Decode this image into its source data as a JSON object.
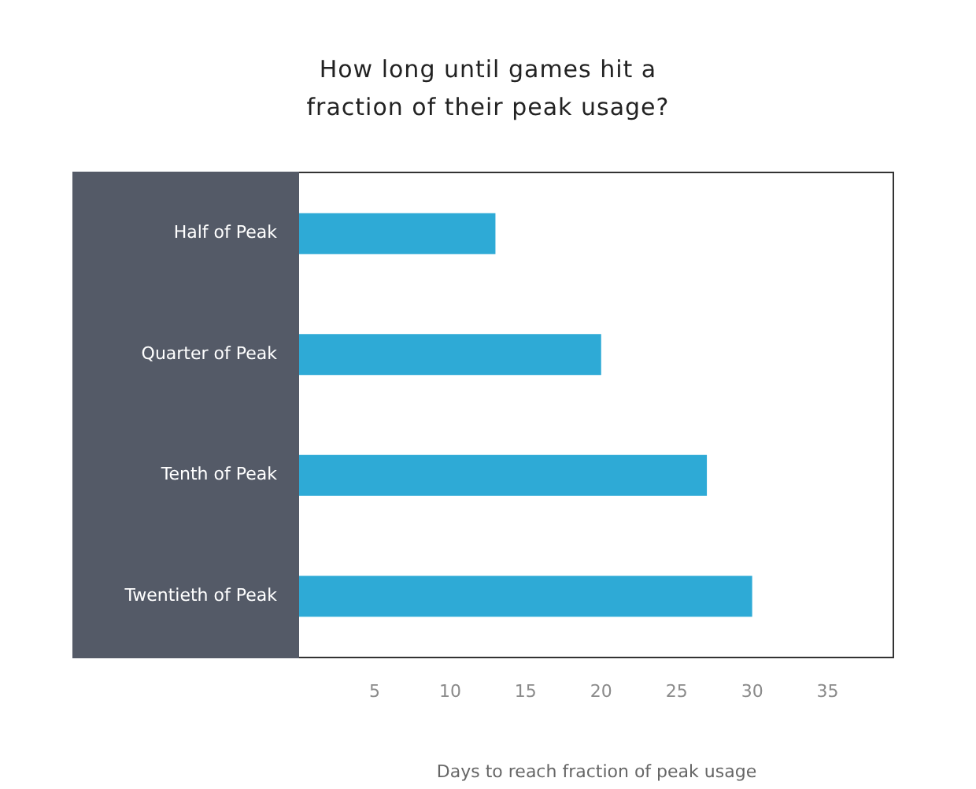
{
  "chart_data": {
    "type": "bar",
    "orientation": "horizontal",
    "title": "How long until games hit a fraction of their peak usage?",
    "xlabel": "Days to reach fraction of peak usage",
    "categories": [
      "Half of Peak",
      "Quarter of Peak",
      "Tenth of Peak",
      "Twentieth of Peak"
    ],
    "values": [
      13,
      20,
      27,
      30
    ],
    "color": "#2eaad6",
    "xlim": [
      0,
      39.4
    ],
    "xticks": [
      5,
      10,
      15,
      20,
      25,
      30,
      35
    ],
    "grid": false,
    "legend": false
  }
}
